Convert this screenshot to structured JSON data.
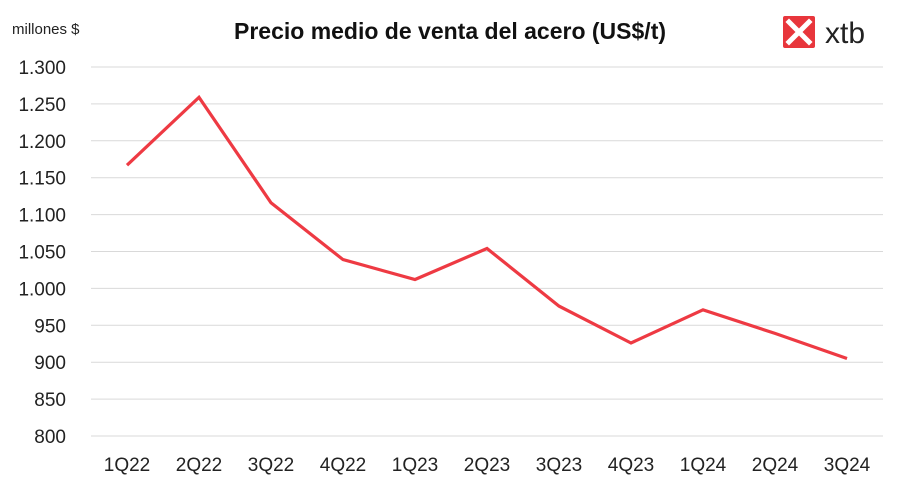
{
  "logo": {
    "text": "xtb",
    "icon": "xtb-x-logo-icon",
    "color": "#e8363c"
  },
  "chart_data": {
    "type": "line",
    "title": "Precio medio de venta del acero (US$/t)",
    "unit_label": "millones $",
    "xlabel": "",
    "ylabel": "",
    "categories": [
      "1Q22",
      "2Q22",
      "3Q22",
      "4Q22",
      "1Q23",
      "2Q23",
      "3Q23",
      "4Q23",
      "1Q24",
      "2Q24",
      "3Q24"
    ],
    "series": [
      {
        "values": [
          1167,
          1259,
          1116,
          1039,
          1012,
          1054,
          976,
          926,
          971,
          939,
          905
        ],
        "color": "#ee3a43"
      }
    ],
    "ylim": [
      800,
      1300
    ],
    "yticks": [
      800,
      850,
      900,
      950,
      1000,
      1050,
      1100,
      1150,
      1200,
      1250,
      1300
    ],
    "ytick_labels": [
      "800",
      "850",
      "900",
      "950",
      "1.000",
      "1.050",
      "1.100",
      "1.150",
      "1.200",
      "1.250",
      "1.300"
    ],
    "grid": true,
    "legend": "none"
  }
}
